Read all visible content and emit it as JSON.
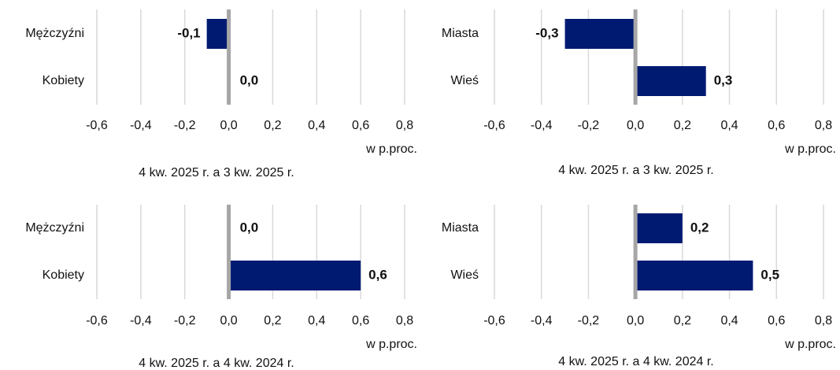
{
  "chart_data": [
    {
      "type": "hbar",
      "title": "4 kw. 2025 r. a 3 kw. 2025 r.",
      "xlabel": "w p.proc.",
      "categories": [
        "Mężczyźni",
        "Kobiety"
      ],
      "values": [
        -0.1,
        0.0
      ],
      "value_labels": [
        "-0,1",
        "0,0"
      ],
      "color": "#001a72",
      "xlim": [
        -0.6,
        0.8
      ],
      "xticks": [
        {
          "value": -0.6,
          "label": "-0,6"
        },
        {
          "value": -0.4,
          "label": "-0,4"
        },
        {
          "value": -0.2,
          "label": "-0,2"
        },
        {
          "value": 0,
          "label": "0,0"
        },
        {
          "value": 0.2,
          "label": "0,2"
        },
        {
          "value": 0.4,
          "label": "0,4"
        },
        {
          "value": 0.6,
          "label": "0,6"
        },
        {
          "value": 0.8,
          "label": "0,8"
        }
      ],
      "grid": true
    },
    {
      "type": "hbar",
      "title": "4 kw. 2025 r. a 3 kw. 2025 r.",
      "xlabel": "w p.proc.",
      "categories": [
        "Miasta",
        "Wieś"
      ],
      "values": [
        -0.3,
        0.3
      ],
      "value_labels": [
        "-0,3",
        "0,3"
      ],
      "color": "#001a72",
      "xlim": [
        -0.6,
        0.8
      ],
      "xticks": [
        {
          "value": -0.6,
          "label": "-0,6"
        },
        {
          "value": -0.4,
          "label": "-0,4"
        },
        {
          "value": -0.2,
          "label": "-0,2"
        },
        {
          "value": 0,
          "label": "0,0"
        },
        {
          "value": 0.2,
          "label": "0,2"
        },
        {
          "value": 0.4,
          "label": "0,4"
        },
        {
          "value": 0.6,
          "label": "0,6"
        },
        {
          "value": 0.8,
          "label": "0,8"
        }
      ],
      "grid": true
    },
    {
      "type": "hbar",
      "title": "4 kw. 2025 r. a 4 kw. 2024 r.",
      "xlabel": "w p.proc.",
      "categories": [
        "Mężczyźni",
        "Kobiety"
      ],
      "values": [
        0.0,
        0.6
      ],
      "value_labels": [
        "0,0",
        "0,6"
      ],
      "color": "#001a72",
      "xlim": [
        -0.6,
        0.8
      ],
      "xticks": [
        {
          "value": -0.6,
          "label": "-0,6"
        },
        {
          "value": -0.4,
          "label": "-0,4"
        },
        {
          "value": -0.2,
          "label": "-0,2"
        },
        {
          "value": 0,
          "label": "0,0"
        },
        {
          "value": 0.2,
          "label": "0,2"
        },
        {
          "value": 0.4,
          "label": "0,4"
        },
        {
          "value": 0.6,
          "label": "0,6"
        },
        {
          "value": 0.8,
          "label": "0,8"
        }
      ],
      "grid": true
    },
    {
      "type": "hbar",
      "title": "4 kw. 2025 r. a 4 kw. 2024 r.",
      "xlabel": "w p.proc.",
      "categories": [
        "Miasta",
        "Wieś"
      ],
      "values": [
        0.2,
        0.5
      ],
      "value_labels": [
        "0,2",
        "0,5"
      ],
      "color": "#001a72",
      "xlim": [
        -0.6,
        0.8
      ],
      "xticks": [
        {
          "value": -0.6,
          "label": "-0,6"
        },
        {
          "value": -0.4,
          "label": "-0,4"
        },
        {
          "value": -0.2,
          "label": "-0,2"
        },
        {
          "value": 0,
          "label": "0,0"
        },
        {
          "value": 0.2,
          "label": "0,2"
        },
        {
          "value": 0.4,
          "label": "0,4"
        },
        {
          "value": 0.6,
          "label": "0,6"
        },
        {
          "value": 0.8,
          "label": "0,8"
        }
      ],
      "grid": true
    }
  ]
}
